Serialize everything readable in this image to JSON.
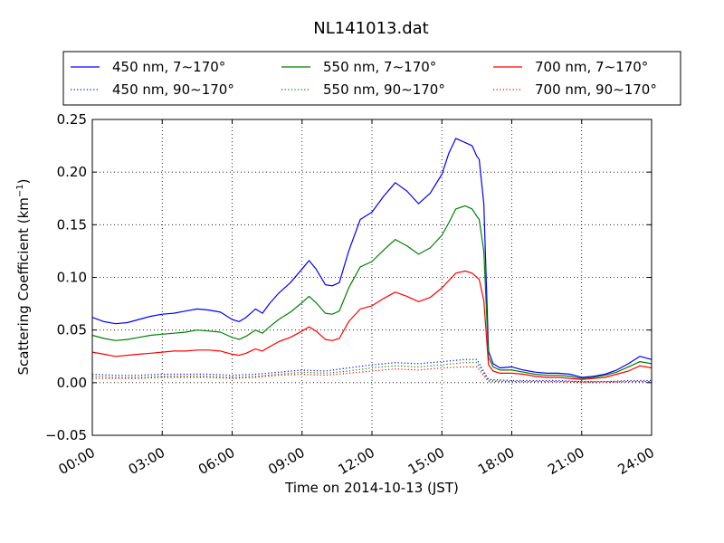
{
  "chart_data": {
    "type": "line",
    "title": "NL141013.dat",
    "xlabel": "Time on 2014-10-13 (JST)",
    "ylabel": "Scattering Coefficient (km",
    "ylabel_sup": "−1",
    "ylabel_close": ")",
    "xlim": [
      0,
      24
    ],
    "ylim": [
      -0.05,
      0.25
    ],
    "x_ticks": [
      "00:00",
      "03:00",
      "06:00",
      "09:00",
      "12:00",
      "15:00",
      "18:00",
      "21:00",
      "24:00"
    ],
    "y_ticks": [
      "−0.05",
      "0.00",
      "0.05",
      "0.10",
      "0.15",
      "0.20",
      "0.25"
    ],
    "grid": true,
    "legend_position": "top, outside, 3 columns",
    "series": [
      {
        "name": "450 nm, 7∼170°",
        "color": "#0000ff",
        "style": "solid",
        "x": [
          0,
          0.5,
          1,
          1.5,
          2,
          2.5,
          3,
          3.5,
          4,
          4.5,
          5,
          5.5,
          6,
          6.3,
          6.6,
          7,
          7.3,
          7.6,
          8,
          8.5,
          9,
          9.3,
          9.6,
          10,
          10.3,
          10.6,
          11,
          11.5,
          12,
          12.5,
          13,
          13.5,
          14,
          14.5,
          15,
          15.3,
          15.6,
          16,
          16.3,
          16.5,
          16.6,
          16.8,
          17,
          17.2,
          17.5,
          18,
          18.5,
          19,
          19.5,
          20,
          20.5,
          21,
          21.5,
          22,
          22.5,
          23,
          23.5,
          24
        ],
        "y": [
          0.062,
          0.058,
          0.056,
          0.057,
          0.06,
          0.063,
          0.065,
          0.066,
          0.068,
          0.07,
          0.069,
          0.067,
          0.06,
          0.058,
          0.062,
          0.07,
          0.066,
          0.075,
          0.085,
          0.095,
          0.108,
          0.116,
          0.108,
          0.093,
          0.092,
          0.095,
          0.125,
          0.155,
          0.162,
          0.177,
          0.19,
          0.182,
          0.17,
          0.18,
          0.198,
          0.218,
          0.232,
          0.228,
          0.225,
          0.215,
          0.212,
          0.17,
          0.03,
          0.018,
          0.014,
          0.015,
          0.012,
          0.01,
          0.009,
          0.009,
          0.008,
          0.005,
          0.006,
          0.008,
          0.012,
          0.018,
          0.025,
          0.022
        ]
      },
      {
        "name": "550 nm, 7∼170°",
        "color": "#008000",
        "style": "solid",
        "x": [
          0,
          0.5,
          1,
          1.5,
          2,
          2.5,
          3,
          3.5,
          4,
          4.5,
          5,
          5.5,
          6,
          6.3,
          6.6,
          7,
          7.3,
          7.6,
          8,
          8.5,
          9,
          9.3,
          9.6,
          10,
          10.3,
          10.6,
          11,
          11.5,
          12,
          12.5,
          13,
          13.5,
          14,
          14.5,
          15,
          15.3,
          15.6,
          16,
          16.3,
          16.5,
          16.6,
          16.8,
          17,
          17.2,
          17.5,
          18,
          18.5,
          19,
          19.5,
          20,
          20.5,
          21,
          21.5,
          22,
          22.5,
          23,
          23.5,
          24
        ],
        "y": [
          0.045,
          0.042,
          0.04,
          0.041,
          0.043,
          0.045,
          0.046,
          0.047,
          0.048,
          0.05,
          0.049,
          0.048,
          0.043,
          0.041,
          0.044,
          0.05,
          0.047,
          0.053,
          0.06,
          0.067,
          0.076,
          0.082,
          0.076,
          0.066,
          0.065,
          0.068,
          0.09,
          0.11,
          0.115,
          0.126,
          0.136,
          0.13,
          0.122,
          0.128,
          0.14,
          0.152,
          0.165,
          0.168,
          0.165,
          0.158,
          0.155,
          0.125,
          0.024,
          0.015,
          0.012,
          0.012,
          0.01,
          0.008,
          0.007,
          0.007,
          0.006,
          0.004,
          0.005,
          0.007,
          0.01,
          0.015,
          0.02,
          0.018
        ]
      },
      {
        "name": "700 nm, 7∼170°",
        "color": "#ff0000",
        "style": "solid",
        "x": [
          0,
          0.5,
          1,
          1.5,
          2,
          2.5,
          3,
          3.5,
          4,
          4.5,
          5,
          5.5,
          6,
          6.3,
          6.6,
          7,
          7.3,
          7.6,
          8,
          8.5,
          9,
          9.3,
          9.6,
          10,
          10.3,
          10.6,
          11,
          11.5,
          12,
          12.5,
          13,
          13.5,
          14,
          14.5,
          15,
          15.3,
          15.6,
          16,
          16.3,
          16.5,
          16.6,
          16.8,
          17,
          17.2,
          17.5,
          18,
          18.5,
          19,
          19.5,
          20,
          20.5,
          21,
          21.5,
          22,
          22.5,
          23,
          23.5,
          24
        ],
        "y": [
          0.029,
          0.027,
          0.025,
          0.026,
          0.027,
          0.028,
          0.029,
          0.03,
          0.03,
          0.031,
          0.031,
          0.03,
          0.027,
          0.026,
          0.028,
          0.032,
          0.03,
          0.034,
          0.039,
          0.043,
          0.049,
          0.053,
          0.049,
          0.041,
          0.04,
          0.042,
          0.058,
          0.07,
          0.073,
          0.08,
          0.086,
          0.082,
          0.077,
          0.081,
          0.09,
          0.097,
          0.104,
          0.106,
          0.104,
          0.1,
          0.098,
          0.078,
          0.017,
          0.011,
          0.009,
          0.009,
          0.008,
          0.006,
          0.005,
          0.005,
          0.004,
          0.003,
          0.004,
          0.005,
          0.008,
          0.011,
          0.016,
          0.014
        ]
      },
      {
        "name": "450 nm, 90∼170°",
        "color": "#0000ff",
        "style": "dotted",
        "x": [
          0,
          1,
          2,
          3,
          4,
          5,
          6,
          7,
          8,
          9,
          10,
          11,
          12,
          13,
          14,
          15,
          16,
          16.5,
          17,
          18,
          19,
          20,
          21,
          22,
          23,
          24
        ],
        "y": [
          0.008,
          0.007,
          0.007,
          0.008,
          0.008,
          0.008,
          0.007,
          0.008,
          0.01,
          0.012,
          0.011,
          0.014,
          0.017,
          0.019,
          0.018,
          0.02,
          0.022,
          0.022,
          0.003,
          0.002,
          0.002,
          0.002,
          0.001,
          0.001,
          0.002,
          0.002
        ]
      },
      {
        "name": "550 nm, 90∼170°",
        "color": "#008000",
        "style": "dotted",
        "x": [
          0,
          1,
          2,
          3,
          4,
          5,
          6,
          7,
          8,
          9,
          10,
          11,
          12,
          13,
          14,
          15,
          16,
          16.5,
          17,
          18,
          19,
          20,
          21,
          22,
          23,
          24
        ],
        "y": [
          0.006,
          0.005,
          0.005,
          0.006,
          0.006,
          0.006,
          0.005,
          0.006,
          0.008,
          0.01,
          0.009,
          0.011,
          0.014,
          0.016,
          0.015,
          0.017,
          0.019,
          0.019,
          0.002,
          0.001,
          0.001,
          0.001,
          0.001,
          0.001,
          0.001,
          0.001
        ]
      },
      {
        "name": "700 nm, 90∼170°",
        "color": "#ff0000",
        "style": "dotted",
        "x": [
          0,
          1,
          2,
          3,
          4,
          5,
          6,
          7,
          8,
          9,
          10,
          11,
          12,
          13,
          14,
          15,
          16,
          16.5,
          17,
          18,
          19,
          20,
          21,
          22,
          23,
          24
        ],
        "y": [
          0.004,
          0.004,
          0.004,
          0.005,
          0.005,
          0.005,
          0.004,
          0.005,
          0.007,
          0.008,
          0.007,
          0.009,
          0.011,
          0.013,
          0.012,
          0.014,
          0.015,
          0.015,
          0.001,
          0.001,
          0.001,
          0.001,
          0.0,
          0.0,
          0.001,
          0.001
        ]
      }
    ]
  }
}
